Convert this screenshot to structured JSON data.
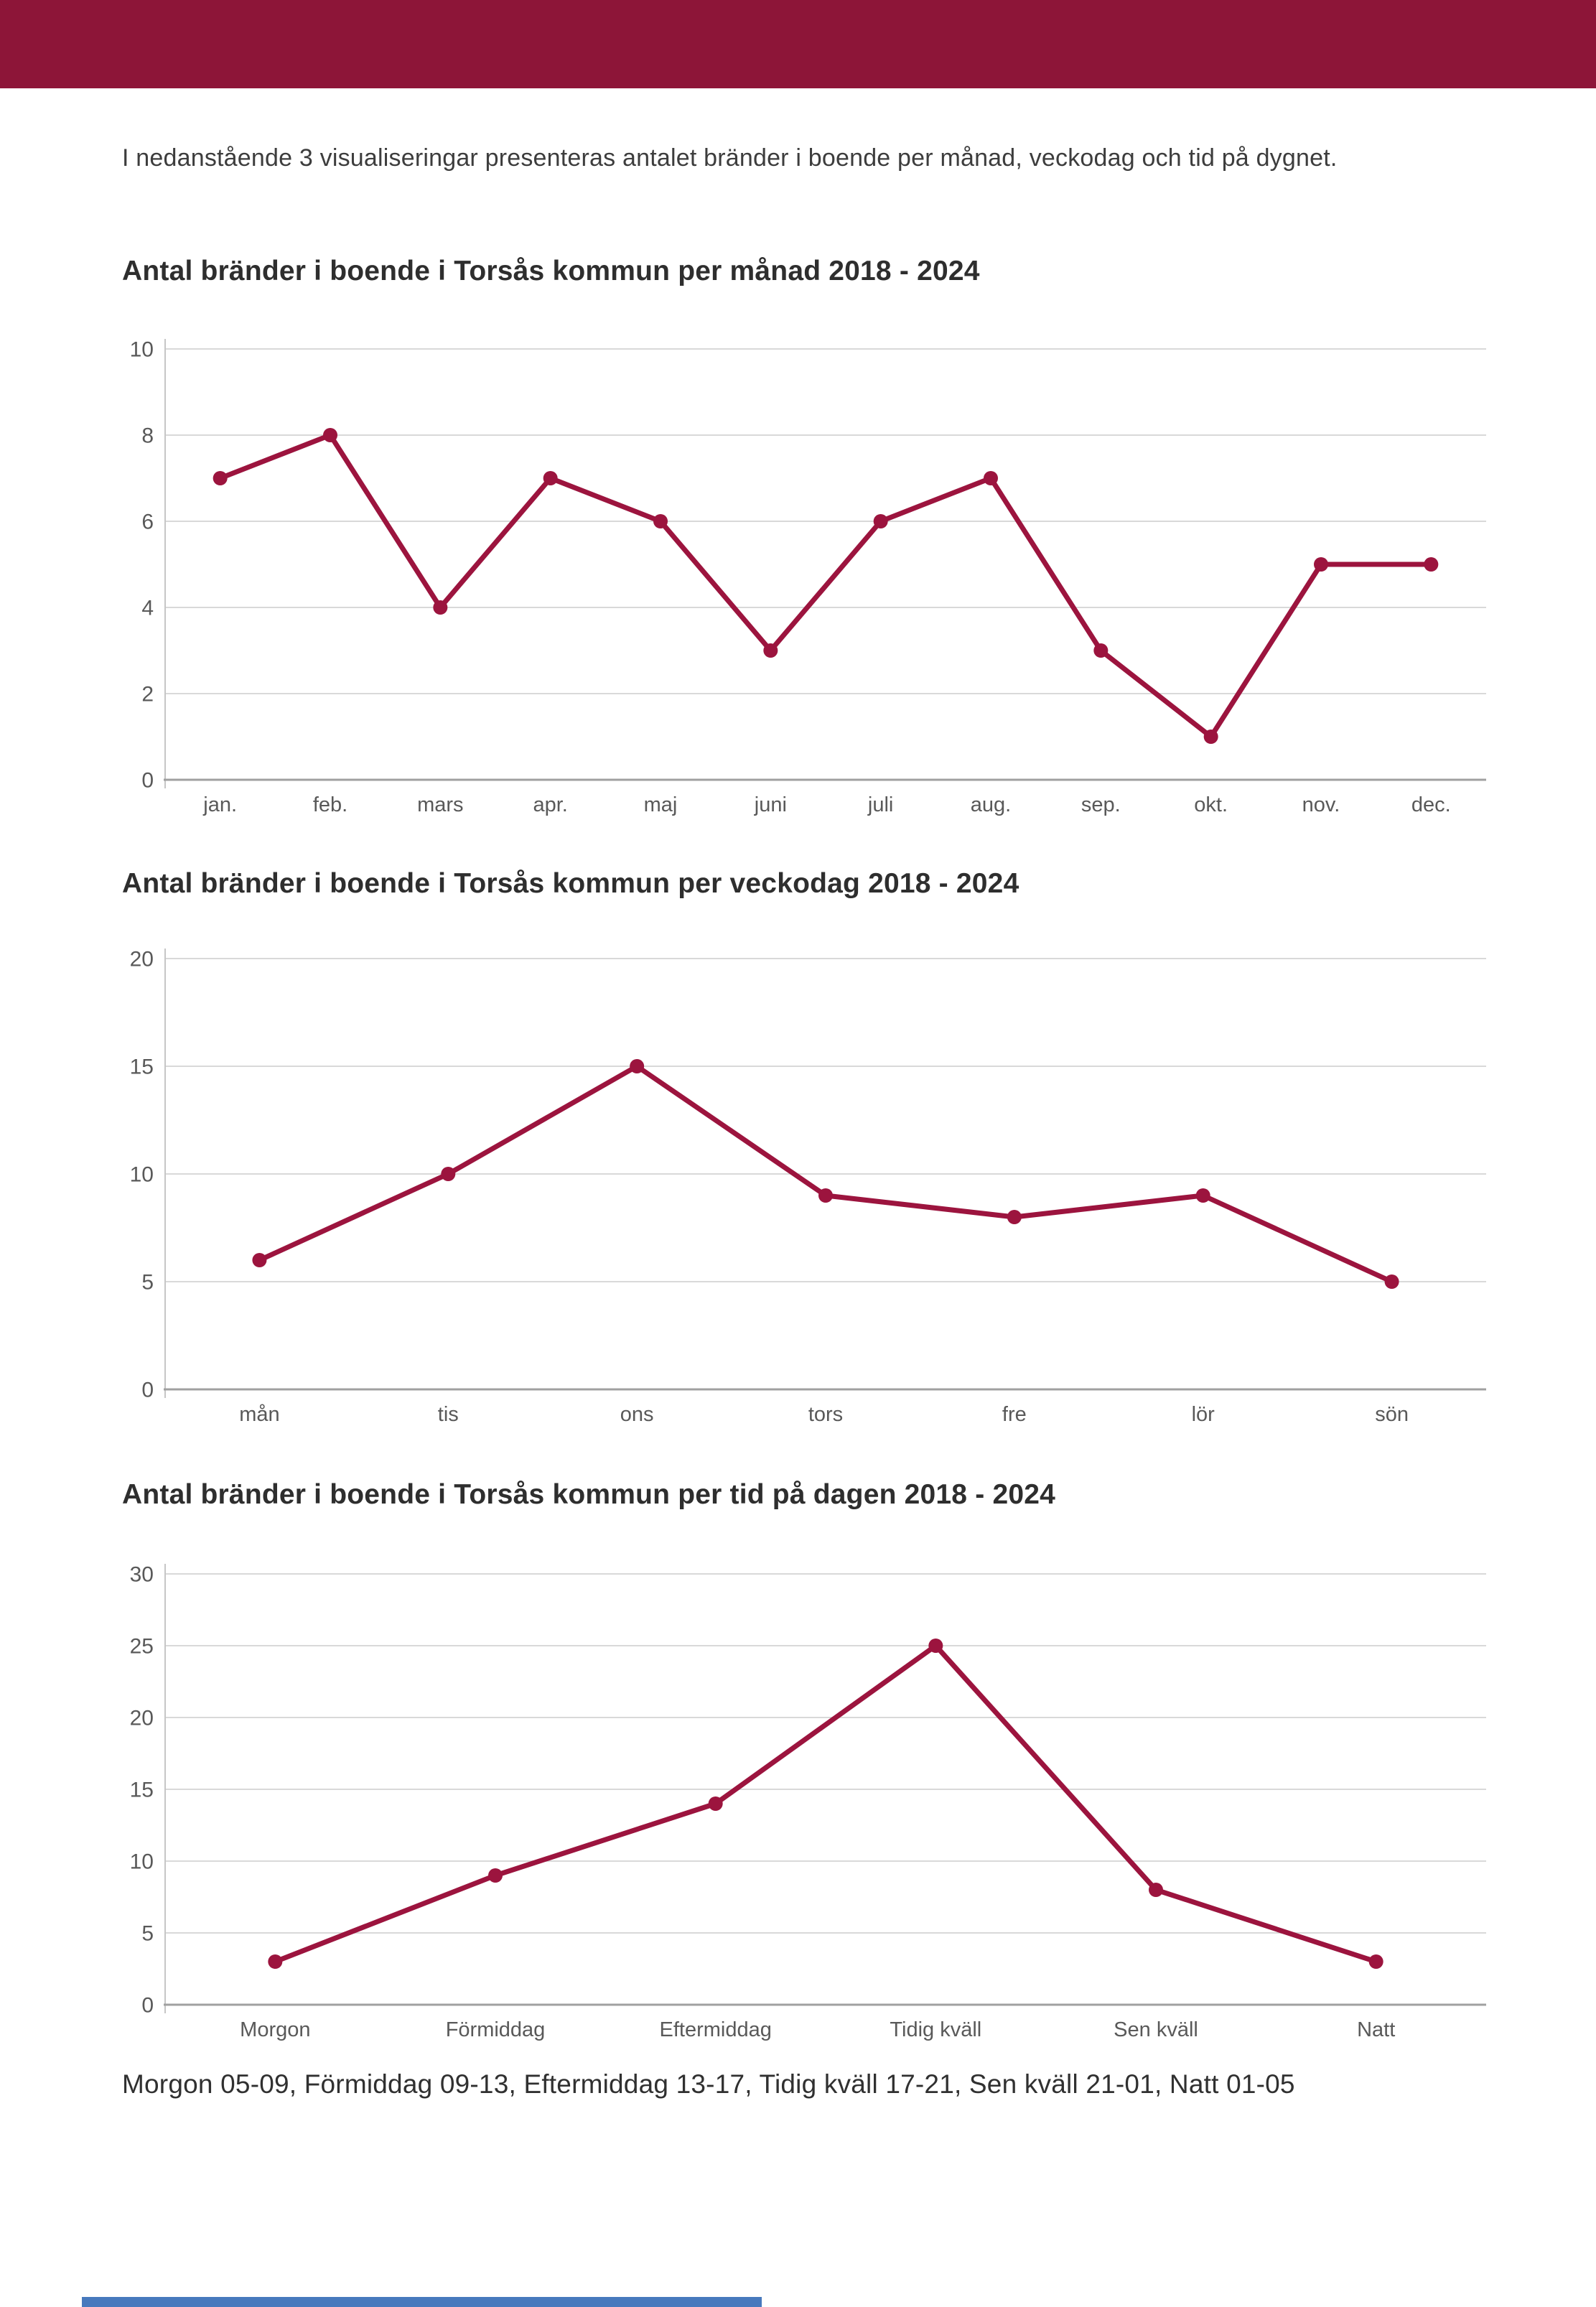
{
  "page": {
    "background": "#ffffff"
  },
  "header_bar": {
    "color": "#8d1538"
  },
  "intro": {
    "text": "I nedanstående 3 visualiseringar presenteras antalet bränder i boende per månad, veckodag och tid på dygnet."
  },
  "colors": {
    "line": "#9c143e",
    "marker": "#9c143e",
    "grid": "#d9d9d9",
    "y_axis": "#c6c6c6",
    "baseline": "#a0a0a0",
    "tick_text": "#595959",
    "title_text": "#2e2e2e"
  },
  "chart_data": [
    {
      "type": "line",
      "title": "Antal bränder i boende i Torsås kommun per månad 2018 - 2024",
      "categories": [
        "jan.",
        "feb.",
        "mars",
        "apr.",
        "maj",
        "juni",
        "juli",
        "aug.",
        "sep.",
        "okt.",
        "nov.",
        "dec."
      ],
      "values": [
        7,
        8,
        4,
        7,
        6,
        3,
        6,
        7,
        3,
        1,
        5,
        5
      ],
      "xlabel": "",
      "ylabel": "",
      "ylim": [
        0,
        10
      ],
      "yticks": [
        0,
        2,
        4,
        6,
        8,
        10
      ],
      "grid": true,
      "legend": "none"
    },
    {
      "type": "line",
      "title": "Antal bränder i boende i Torsås kommun per veckodag 2018 - 2024",
      "categories": [
        "mån",
        "tis",
        "ons",
        "tors",
        "fre",
        "lör",
        "sön"
      ],
      "values": [
        6,
        10,
        15,
        9,
        8,
        9,
        5
      ],
      "xlabel": "",
      "ylabel": "",
      "ylim": [
        0,
        20
      ],
      "yticks": [
        0,
        5,
        10,
        15,
        20
      ],
      "grid": true,
      "legend": "none"
    },
    {
      "type": "line",
      "title": "Antal bränder i boende i Torsås kommun per tid på dagen 2018 - 2024",
      "categories": [
        "Morgon",
        "Förmiddag",
        "Eftermiddag",
        "Tidig kväll",
        "Sen kväll",
        "Natt"
      ],
      "values": [
        3,
        9,
        14,
        25,
        8,
        3
      ],
      "xlabel": "",
      "ylabel": "",
      "ylim": [
        0,
        30
      ],
      "yticks": [
        0,
        5,
        10,
        15,
        20,
        25,
        30
      ],
      "grid": true,
      "legend": "none"
    }
  ],
  "footer": {
    "note": "Morgon 05-09, Förmiddag 09-13, Eftermiddag 13-17, Tidig kväll 17-21, Sen kväll 21-01, Natt 01-05",
    "accent_color": "#4779bd"
  }
}
